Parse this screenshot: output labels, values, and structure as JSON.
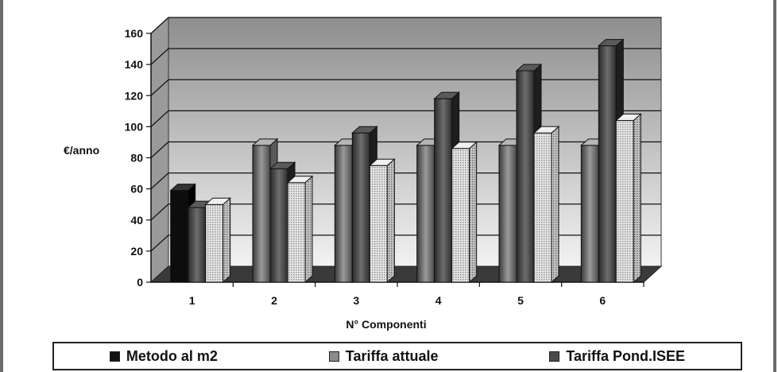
{
  "chart_data": {
    "type": "bar",
    "title": "",
    "xlabel": "N° Componenti",
    "ylabel": "€/anno",
    "categories": [
      "1",
      "2",
      "3",
      "4",
      "5",
      "6"
    ],
    "ylim": [
      0,
      160
    ],
    "yticks": [
      0,
      20,
      40,
      60,
      80,
      100,
      120,
      140,
      160
    ],
    "grid": true,
    "three_d": true,
    "legend_position": "bottom",
    "series": [
      {
        "name": "Metodo al m2",
        "values": [
          59,
          88,
          88,
          88,
          88,
          88
        ],
        "color": "#1a1a1a",
        "first_bar_color": "#111111"
      },
      {
        "name": "Tariffa attuale",
        "values": [
          48,
          73,
          96,
          118,
          136,
          152
        ],
        "color": "#4a4a4a"
      },
      {
        "name": "Tariffa Pond.ISEE",
        "values": [
          50,
          64,
          75,
          86,
          96,
          104
        ],
        "color": "#dcdcdc",
        "pattern": "dotted"
      }
    ]
  },
  "legend": {
    "items": [
      {
        "label": "Metodo al m2",
        "color": "#111111"
      },
      {
        "label": "Tariffa attuale",
        "color": "#8a8a8a"
      },
      {
        "label": "Tariffa Pond.ISEE",
        "color": "#4a4a4a"
      }
    ]
  }
}
